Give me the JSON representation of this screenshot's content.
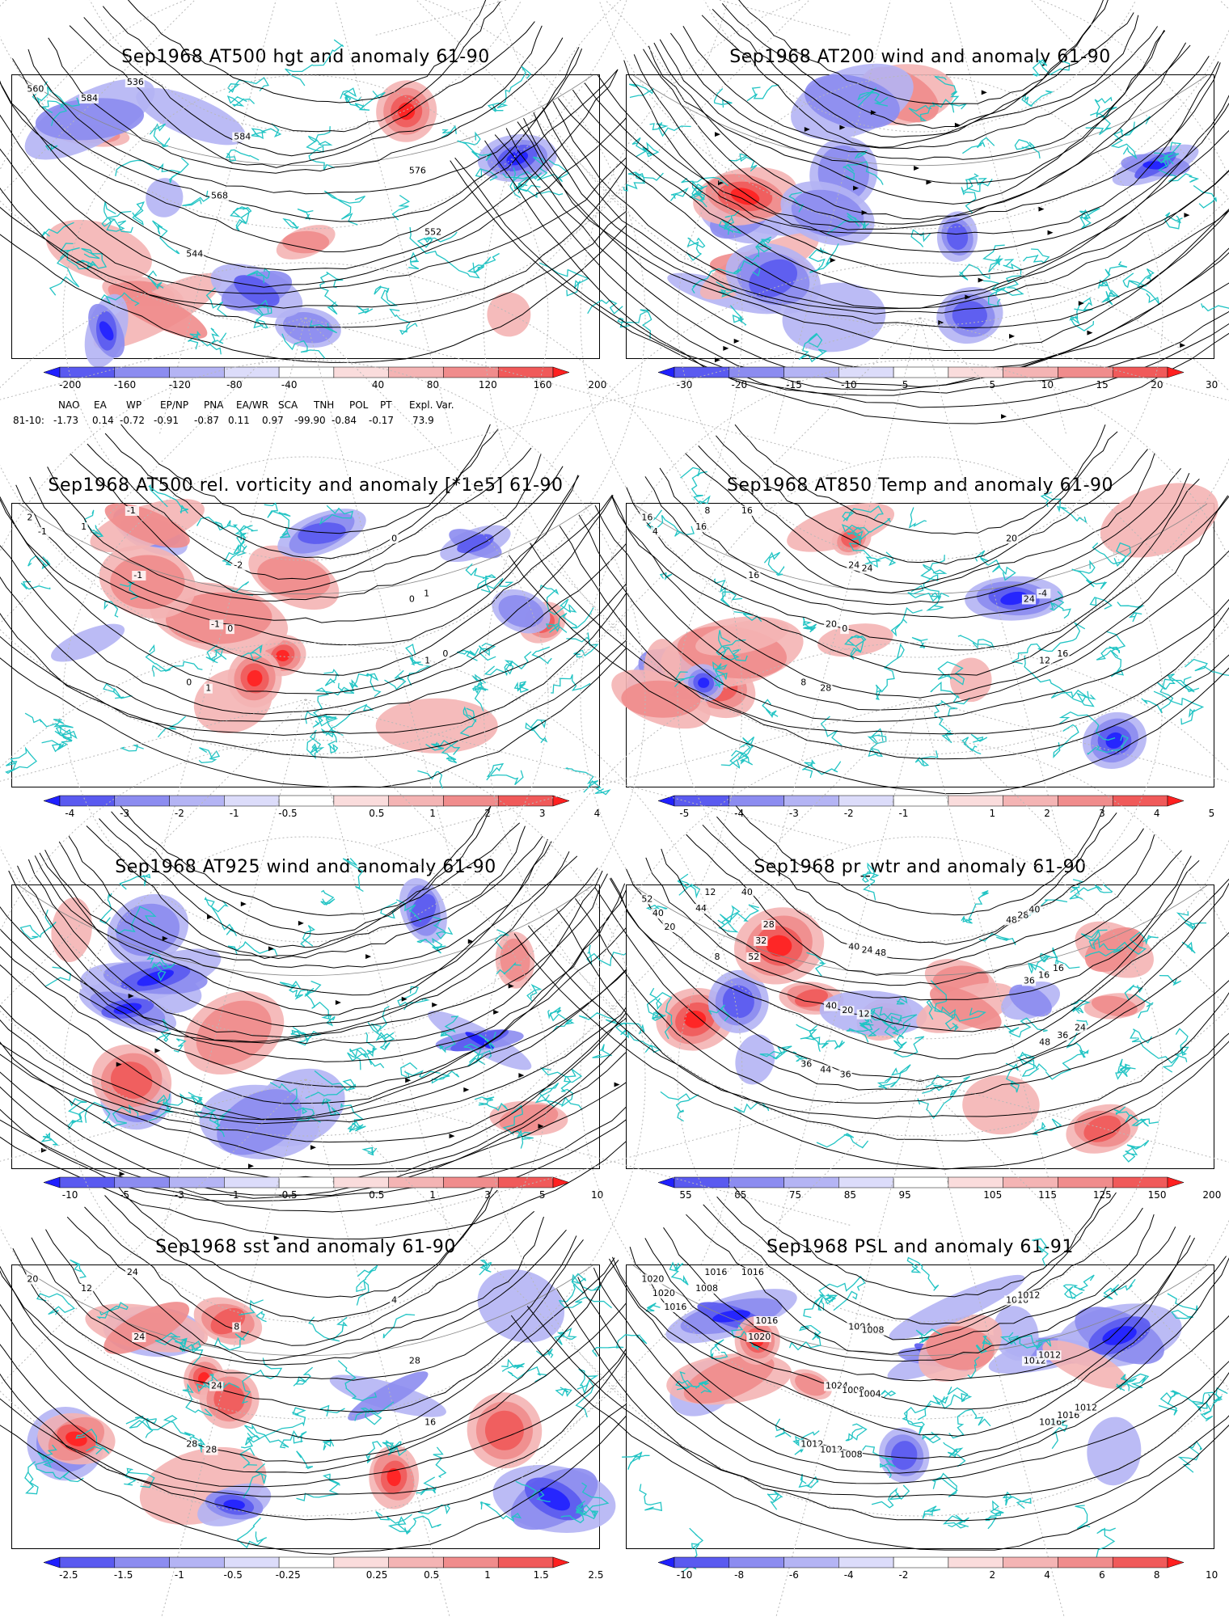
{
  "colors": {
    "coast": "#22c4c4",
    "contour": "#000000",
    "grid": "#b8b8b8",
    "neg_strong": "#2b2bff",
    "pos_strong": "#ff2b2b"
  },
  "panels": [
    {
      "title": "Sep1968 AT500 hgt and anomaly 61-90",
      "colorbar": [
        "-200",
        "-160",
        "-120",
        "-80",
        "-40",
        "40",
        "80",
        "120",
        "160",
        "200"
      ],
      "labels": [
        "536",
        "544",
        "552",
        "560",
        "568",
        "576",
        "584",
        "584"
      ],
      "style": "hgt"
    },
    {
      "title": "Sep1968 AT200 wind and anomaly 61-90",
      "colorbar": [
        "-30",
        "-20",
        "-15",
        "-10",
        "-5",
        "5",
        "10",
        "15",
        "20",
        "30"
      ],
      "labels": [],
      "style": "stream"
    },
    {
      "title": "Sep1968 AT500 rel. vorticity and anomaly [*1e5] 61-90",
      "colorbar": [
        "-4",
        "-3",
        "-2",
        "-1",
        "-0.5",
        "0.5",
        "1",
        "2",
        "3",
        "4"
      ],
      "labels": [
        "-1",
        "0",
        "1",
        "2",
        "-1",
        "0",
        "1",
        "-2",
        "0",
        "-1",
        "1",
        "0",
        "-1",
        "0",
        "1"
      ],
      "style": "vort"
    },
    {
      "title": "Sep1968 AT850 Temp and anomaly 61-90",
      "colorbar": [
        "-5",
        "-4",
        "-3",
        "-2",
        "-1",
        "1",
        "2",
        "3",
        "4",
        "5"
      ],
      "labels": [
        "16",
        "8",
        "12",
        "16",
        "20",
        "24",
        "16",
        "24",
        "20",
        "16",
        "28",
        "16",
        "4",
        "0",
        "-4",
        "8",
        "24"
      ],
      "style": "temp"
    },
    {
      "title": "Sep1968 AT925 wind and anomaly 61-90",
      "colorbar": [
        "-10",
        "-5",
        "-3",
        "-1",
        "-0.5",
        "0.5",
        "1",
        "3",
        "5",
        "10"
      ],
      "labels": [],
      "style": "stream"
    },
    {
      "title": "Sep1968 pr_wtr and anomaly 61-90",
      "colorbar": [
        "55",
        "65",
        "75",
        "85",
        "95",
        "105",
        "115",
        "125",
        "150",
        "200"
      ],
      "labels": [
        "40",
        "36",
        "48",
        "52",
        "40",
        "36",
        "44",
        "40",
        "48",
        "52",
        "44",
        "36",
        "40",
        "20",
        "16",
        "12",
        "24",
        "28",
        "32",
        "36",
        "24",
        "20",
        "12",
        "16",
        "8",
        "48",
        "40",
        "28"
      ],
      "style": "prw"
    },
    {
      "title": "Sep1968 sst and anomaly 61-90",
      "colorbar": [
        "-2.5",
        "-1.5",
        "-1",
        "-0.5",
        "-0.25",
        "0.25",
        "0.5",
        "1",
        "1.5",
        "2.5"
      ],
      "labels": [
        "24",
        "28",
        "16",
        "20",
        "24",
        "28",
        "12",
        "8",
        "4",
        "24",
        "28"
      ],
      "style": "sst"
    },
    {
      "title": "Sep1968 PSL and anomaly 61-91",
      "colorbar": [
        "-10",
        "-8",
        "-6",
        "-4",
        "-2",
        "2",
        "4",
        "6",
        "8",
        "10"
      ],
      "labels": [
        "1016",
        "1012",
        "1016",
        "1020",
        "1024",
        "1012",
        "1008",
        "1004",
        "1016",
        "1020",
        "1012",
        "1016",
        "1020",
        "1008",
        "1012",
        "1016",
        "1008",
        "1012",
        "1016",
        "1008",
        "1012",
        "1016",
        "1004"
      ],
      "style": "psl"
    }
  ],
  "indices": {
    "names": [
      "NAO",
      "EA",
      "WP",
      "EP/NP",
      "PNA",
      "EA/WR",
      "SCA",
      "TNH",
      "POL",
      "PT",
      "Expl. Var."
    ],
    "row_label": "81-10:",
    "values": [
      "-1.73",
      "0.14",
      "-0.72",
      "-0.91",
      "-0.87",
      "0.11",
      "0.97",
      "-99.90",
      "-0.84",
      "-0.17",
      "73.9"
    ]
  }
}
